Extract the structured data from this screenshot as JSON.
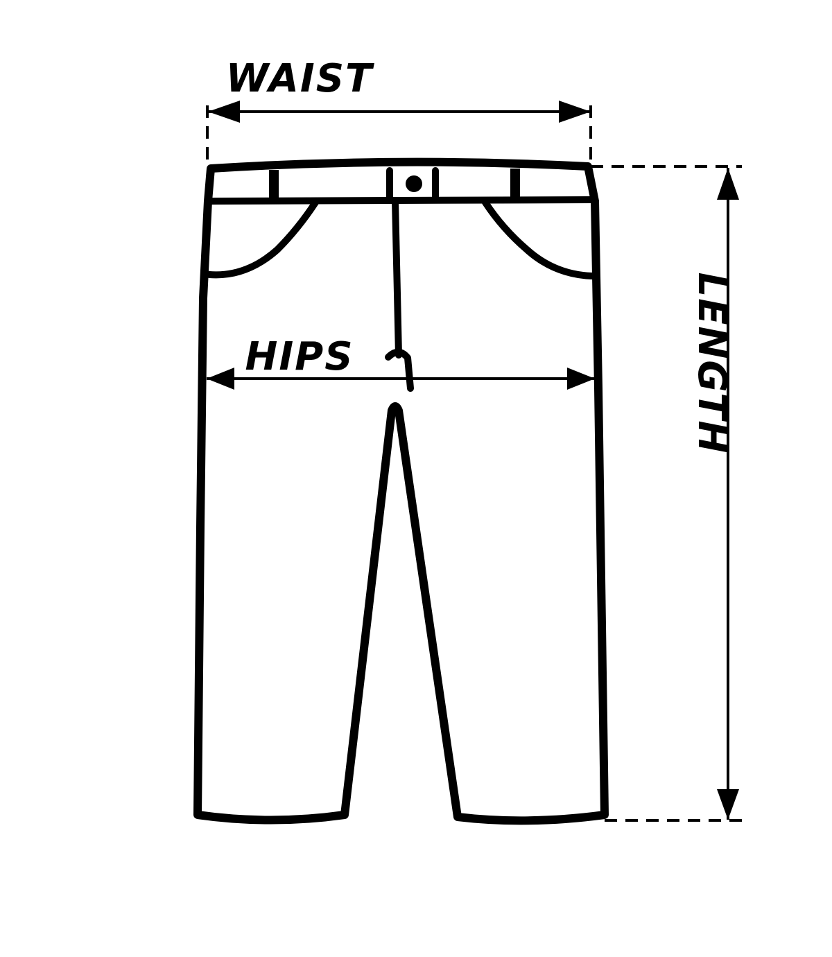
{
  "labels": {
    "waist": "WAIST",
    "hips": "HIPS",
    "length": "LENGTH"
  },
  "colors": {
    "line": "#000000",
    "background": "#ffffff"
  }
}
